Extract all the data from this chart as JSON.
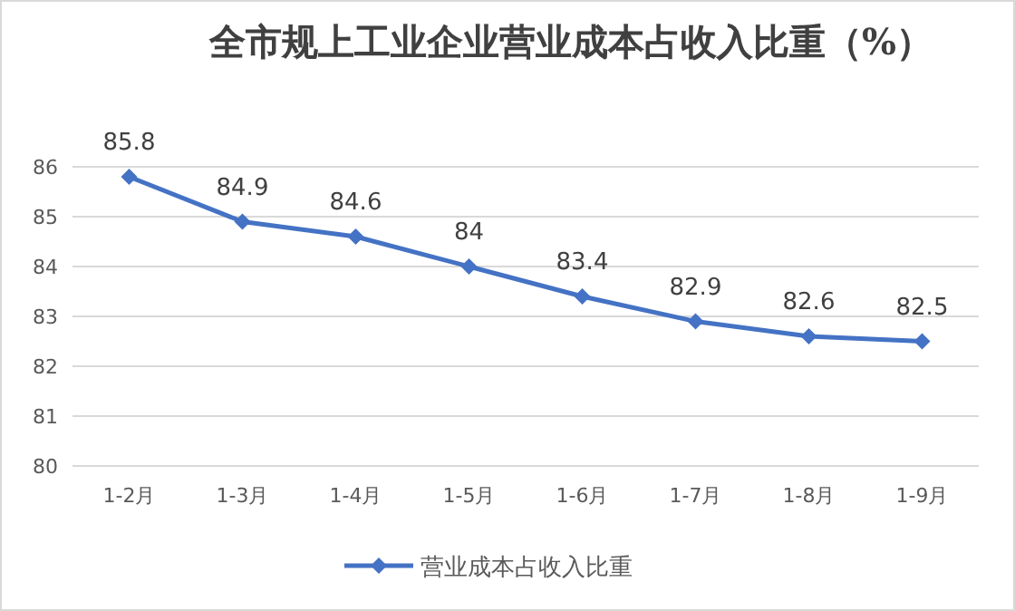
{
  "chart_data": {
    "type": "line",
    "title": "全市规上工业企业营业成本占收入比重（%）",
    "categories": [
      "1-2月",
      "1-3月",
      "1-4月",
      "1-5月",
      "1-6月",
      "1-7月",
      "1-8月",
      "1-9月"
    ],
    "series": [
      {
        "name": "营业成本占收入比重",
        "color": "#4472c4",
        "values": [
          85.8,
          84.9,
          84.6,
          84,
          83.4,
          82.9,
          82.6,
          82.5
        ]
      }
    ],
    "ylim": [
      80,
      86
    ],
    "yticks": [
      80,
      81,
      82,
      83,
      84,
      85,
      86
    ],
    "grid": "y",
    "legend": "bottom",
    "marker": "diamond",
    "line_style": "solid",
    "data_labels": true
  }
}
